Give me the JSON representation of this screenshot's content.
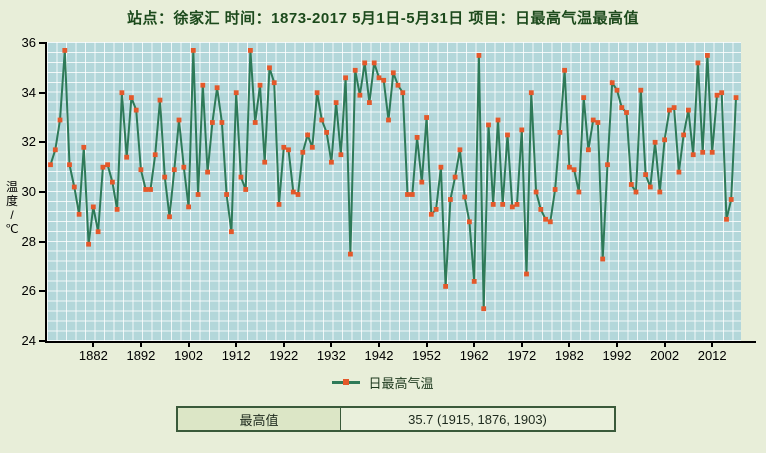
{
  "title": "站点：徐家汇 时间：1873-2017  5月1日-5月31日 项目：日最高气温最高值",
  "legend": {
    "label": "日最高气温"
  },
  "summary_table": {
    "label": "最高值",
    "value": "35.7 (1915, 1876, 1903)"
  },
  "colors": {
    "page_bg": "#e8eed9",
    "title_text": "#1c4a1c",
    "plot_bg": "#b3d7da",
    "grid": "#ffffff",
    "line": "#2e7a58",
    "marker": "#e4582a",
    "axis": "#000000",
    "table_border": "#3a5a3a",
    "table_label_bg": "#dce6c6",
    "table_value_bg": "#eaf0dc"
  },
  "chart_data": {
    "type": "line",
    "title": "站点：徐家汇 时间：1873-2017  5月1日-5月31日 项目：日最高气温最高值",
    "xlabel": "",
    "ylabel": "温度/℃",
    "ylabel_chars": [
      "温",
      "度",
      "/",
      "℃"
    ],
    "ylim": [
      24,
      36
    ],
    "y_ticks": [
      36,
      34,
      32,
      30,
      28,
      26,
      24
    ],
    "x_ticks": [
      1882,
      1892,
      1902,
      1912,
      1922,
      1932,
      1942,
      1952,
      1962,
      1972,
      1982,
      1992,
      2002,
      2012
    ],
    "grid": true,
    "legend_position": "bottom",
    "x_start": 1873,
    "x_end": 2017,
    "x_note": "x values are consecutive years 1873-2017",
    "series": [
      {
        "name": "日最高气温",
        "values": [
          31.1,
          31.7,
          32.9,
          35.7,
          31.1,
          30.2,
          29.1,
          31.8,
          27.9,
          29.4,
          28.4,
          31.0,
          31.1,
          30.4,
          29.3,
          34.0,
          31.4,
          33.8,
          33.3,
          30.9,
          30.1,
          30.1,
          31.5,
          33.7,
          30.6,
          29.0,
          30.9,
          32.9,
          31.0,
          29.4,
          35.7,
          29.9,
          34.3,
          30.8,
          32.8,
          34.2,
          32.8,
          29.9,
          28.4,
          34.0,
          30.6,
          30.1,
          35.7,
          32.8,
          34.3,
          31.2,
          35.0,
          34.4,
          29.5,
          31.8,
          31.7,
          30.0,
          29.9,
          31.6,
          32.3,
          31.8,
          34.0,
          32.9,
          32.4,
          31.2,
          33.6,
          31.5,
          34.6,
          27.5,
          34.9,
          33.9,
          35.2,
          33.6,
          35.2,
          34.6,
          34.5,
          32.9,
          34.8,
          34.3,
          34.0,
          29.9,
          29.9,
          32.2,
          30.4,
          33.0,
          29.1,
          29.3,
          31.0,
          26.2,
          29.7,
          30.6,
          31.7,
          29.8,
          28.8,
          26.4,
          35.5,
          25.3,
          32.7,
          29.5,
          32.9,
          29.5,
          32.3,
          29.4,
          29.5,
          32.5,
          26.7,
          34.0,
          30.0,
          29.3,
          28.9,
          28.8,
          30.1,
          32.4,
          34.9,
          31.0,
          30.9,
          30.0,
          33.8,
          31.7,
          32.9,
          32.8,
          27.3,
          31.1,
          34.4,
          34.1,
          33.4,
          33.2,
          30.3,
          30.0,
          34.1,
          30.7,
          30.2,
          32.0,
          30.0,
          32.1,
          33.3,
          33.4,
          30.8,
          32.3,
          33.3,
          31.5,
          35.2,
          31.6,
          35.5,
          31.6,
          33.9,
          34.0,
          28.9,
          29.7,
          33.8
        ]
      }
    ],
    "annotated_max": {
      "value": 35.7,
      "years": [
        1915,
        1876,
        1903
      ]
    }
  }
}
